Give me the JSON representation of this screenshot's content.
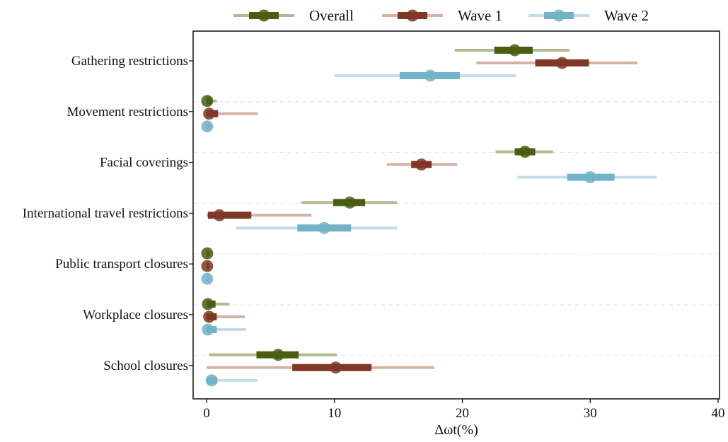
{
  "chart_data": {
    "type": "forest",
    "xlabel": "Δωt(%)",
    "xlim": [
      0,
      40
    ],
    "xticks": [
      0,
      10,
      20,
      30,
      40
    ],
    "grid": "horizontal dashed separators between categories",
    "legend_position": "top",
    "categories": [
      "Gathering restrictions",
      "Movement restrictions",
      "Facial coverings",
      "International travel restrictions",
      "Public transport closures",
      "Workplace closures",
      "School closures"
    ],
    "series": [
      {
        "name": "Overall",
        "color": "#4a5d12",
        "light_color": "#b1b98f",
        "points": [
          {
            "est": 24.1,
            "ci50": [
              22.5,
              25.5
            ],
            "ci95": [
              19.4,
              28.4
            ]
          },
          {
            "est": 0.05,
            "ci50": [
              0.0,
              0.4
            ],
            "ci95": [
              0.0,
              0.8
            ]
          },
          {
            "est": 24.9,
            "ci50": [
              24.1,
              25.7
            ],
            "ci95": [
              22.6,
              27.1
            ]
          },
          {
            "est": 11.2,
            "ci50": [
              9.9,
              12.4
            ],
            "ci95": [
              7.4,
              14.9
            ]
          },
          {
            "est": 0.05,
            "ci50": [
              0.0,
              0.2
            ],
            "ci95": [
              0.0,
              0.4
            ]
          },
          {
            "est": 0.1,
            "ci50": [
              0.0,
              0.7
            ],
            "ci95": [
              0.0,
              1.8
            ]
          },
          {
            "est": 5.6,
            "ci50": [
              3.9,
              7.2
            ],
            "ci95": [
              0.2,
              10.2
            ]
          }
        ]
      },
      {
        "name": "Wave 1",
        "color": "#7f3826",
        "light_color": "#d6b1a7",
        "points": [
          {
            "est": 27.8,
            "ci50": [
              25.7,
              29.9
            ],
            "ci95": [
              21.1,
              33.7
            ]
          },
          {
            "est": 0.2,
            "ci50": [
              0.0,
              0.9
            ],
            "ci95": [
              0.0,
              4.0
            ]
          },
          {
            "est": 16.8,
            "ci50": [
              16.0,
              17.6
            ],
            "ci95": [
              14.1,
              19.6
            ]
          },
          {
            "est": 1.0,
            "ci50": [
              0.1,
              3.5
            ],
            "ci95": [
              0.0,
              8.2
            ]
          },
          {
            "est": 0.05,
            "ci50": [
              0.0,
              0.2
            ],
            "ci95": [
              0.0,
              0.4
            ]
          },
          {
            "est": 0.2,
            "ci50": [
              0.0,
              0.8
            ],
            "ci95": [
              0.0,
              3.0
            ]
          },
          {
            "est": 10.1,
            "ci50": [
              6.7,
              12.9
            ],
            "ci95": [
              0.0,
              17.8
            ]
          }
        ]
      },
      {
        "name": "Wave 2",
        "color": "#74b2c8",
        "light_color": "#c1dde7",
        "points": [
          {
            "est": 17.5,
            "ci50": [
              15.1,
              19.8
            ],
            "ci95": [
              10.0,
              24.2
            ]
          },
          {
            "est": 0.05,
            "ci50": [
              0.0,
              0.2
            ],
            "ci95": [
              0.0,
              0.5
            ]
          },
          {
            "est": 30.0,
            "ci50": [
              28.2,
              31.9
            ],
            "ci95": [
              24.3,
              35.2
            ]
          },
          {
            "est": 9.2,
            "ci50": [
              7.1,
              11.3
            ],
            "ci95": [
              2.3,
              14.9
            ]
          },
          {
            "est": 0.05,
            "ci50": [
              0.0,
              0.2
            ],
            "ci95": [
              0.0,
              0.4
            ]
          },
          {
            "est": 0.1,
            "ci50": [
              0.0,
              0.8
            ],
            "ci95": [
              0.0,
              3.1
            ]
          },
          {
            "est": 0.4,
            "ci50": [
              0.0,
              0.8
            ],
            "ci95": [
              0.0,
              4.0
            ]
          }
        ]
      }
    ]
  }
}
